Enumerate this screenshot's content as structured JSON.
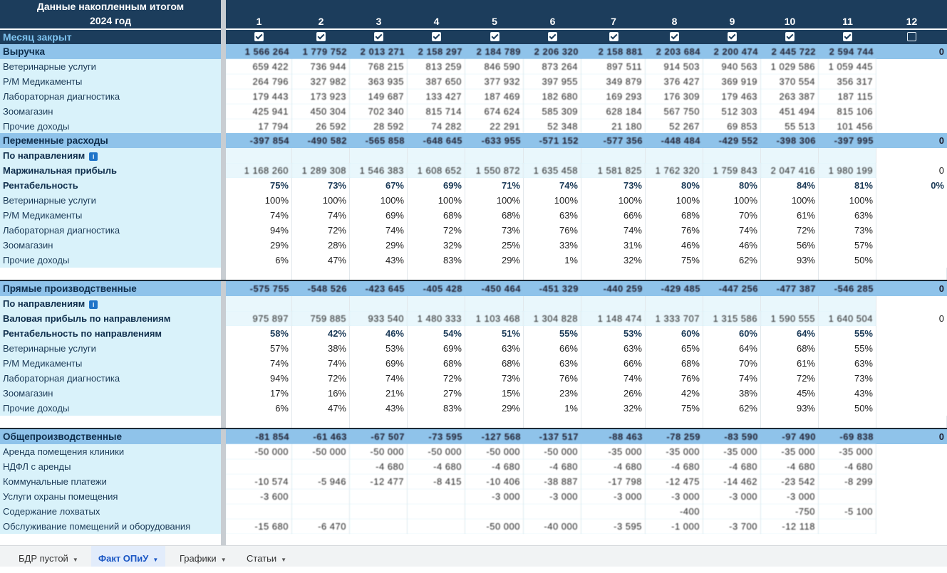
{
  "header": {
    "title": "Данные накопленным итогом",
    "year": "2024 год",
    "months": [
      "1",
      "2",
      "3",
      "4",
      "5",
      "6",
      "7",
      "8",
      "9",
      "10",
      "11",
      "12"
    ]
  },
  "month_closed": {
    "label": "Месяц закрыт",
    "checked": [
      true,
      true,
      true,
      true,
      true,
      true,
      true,
      true,
      true,
      true,
      true,
      false
    ]
  },
  "rows": [
    {
      "label": "Выручка",
      "type": "sec",
      "values": [
        "1 566 264",
        "1 779 752",
        "2 013 271",
        "2 158 297",
        "2 184 789",
        "2 206 320",
        "2 158 881",
        "2 203 684",
        "2 200 474",
        "2 445 722",
        "2 594 744",
        "0"
      ],
      "blur": true
    },
    {
      "label": "Ветеринарные услуги",
      "type": "sub",
      "values": [
        "659 422",
        "736 944",
        "768 215",
        "813 259",
        "846 590",
        "873 264",
        "897 511",
        "914 503",
        "940 563",
        "1 029 586",
        "1 059 445",
        ""
      ],
      "blur": true
    },
    {
      "label": "Р/М Медикаменты",
      "type": "sub",
      "values": [
        "264 796",
        "327 982",
        "363 935",
        "387 650",
        "377 932",
        "397 955",
        "349 879",
        "376 427",
        "369 919",
        "370 554",
        "356 317",
        ""
      ],
      "blur": true
    },
    {
      "label": "Лабораторная диагностика",
      "type": "sub",
      "values": [
        "179 443",
        "173 923",
        "149 687",
        "133 427",
        "187 469",
        "182 680",
        "169 293",
        "176 309",
        "179 463",
        "263 387",
        "187 115",
        ""
      ],
      "blur": true
    },
    {
      "label": "Зоомагазин",
      "type": "sub",
      "values": [
        "425 941",
        "450 304",
        "702 340",
        "815 714",
        "674 624",
        "585 309",
        "628 184",
        "567 750",
        "512 303",
        "451 494",
        "815 106",
        ""
      ],
      "blur": true
    },
    {
      "label": "Прочие доходы",
      "type": "sub",
      "values": [
        "17 794",
        "26 592",
        "28 592",
        "74 282",
        "22 291",
        "52 348",
        "21 180",
        "52 267",
        "69 853",
        "55 513",
        "101 456",
        ""
      ],
      "blur": true
    },
    {
      "label": "Переменные расходы",
      "type": "sec",
      "values": [
        "-397 854",
        "-490 582",
        "-565 858",
        "-648 645",
        "-633 955",
        "-571 152",
        "-577 356",
        "-448 484",
        "-429 552",
        "-398 306",
        "-397 995",
        "0"
      ],
      "blur": true
    },
    {
      "label": "По направлениям",
      "type": "sub subb",
      "info": true,
      "values": [
        "",
        "",
        "",
        "",
        "",
        "",
        "",
        "",
        "",
        "",
        "",
        ""
      ]
    },
    {
      "label": "Маржинальная прибыль",
      "type": "sub subb",
      "values": [
        "1 168 260",
        "1 289 308",
        "1 546 383",
        "1 608 652",
        "1 550 872",
        "1 635 458",
        "1 581 825",
        "1 762 320",
        "1 759 843",
        "2 047 416",
        "1 980 199",
        "0"
      ],
      "blur": true
    },
    {
      "label": "Рентабельность",
      "type": "sub subb pct",
      "values": [
        "75%",
        "73%",
        "67%",
        "69%",
        "71%",
        "74%",
        "73%",
        "80%",
        "80%",
        "84%",
        "81%",
        "0%"
      ]
    },
    {
      "label": "Ветеринарные услуги",
      "type": "sub",
      "values": [
        "100%",
        "100%",
        "100%",
        "100%",
        "100%",
        "100%",
        "100%",
        "100%",
        "100%",
        "100%",
        "100%",
        ""
      ]
    },
    {
      "label": "Р/М Медикаменты",
      "type": "sub",
      "values": [
        "74%",
        "74%",
        "69%",
        "68%",
        "68%",
        "63%",
        "66%",
        "68%",
        "70%",
        "61%",
        "63%",
        ""
      ]
    },
    {
      "label": "Лабораторная диагностика",
      "type": "sub",
      "values": [
        "94%",
        "72%",
        "74%",
        "72%",
        "73%",
        "76%",
        "74%",
        "76%",
        "74%",
        "72%",
        "73%",
        ""
      ]
    },
    {
      "label": "Зоомагазин",
      "type": "sub",
      "values": [
        "29%",
        "28%",
        "29%",
        "32%",
        "25%",
        "33%",
        "31%",
        "46%",
        "46%",
        "56%",
        "57%",
        ""
      ]
    },
    {
      "label": "Прочие доходы",
      "type": "sub",
      "values": [
        "6%",
        "47%",
        "43%",
        "83%",
        "29%",
        "1%",
        "32%",
        "75%",
        "62%",
        "93%",
        "50%",
        ""
      ]
    },
    {
      "label": "",
      "type": "blank",
      "values": [
        "",
        "",
        "",
        "",
        "",
        "",
        "",
        "",
        "",
        "",
        "",
        ""
      ]
    },
    {
      "label": "Прямые производственные",
      "type": "sec",
      "values": [
        "-575 755",
        "-548 526",
        "-423 645",
        "-405 428",
        "-450 464",
        "-451 329",
        "-440 259",
        "-429 485",
        "-447 256",
        "-477 387",
        "-546 285",
        "0"
      ],
      "blur": true
    },
    {
      "label": "По направлениям",
      "type": "sub subb",
      "info": true,
      "values": [
        "",
        "",
        "",
        "",
        "",
        "",
        "",
        "",
        "",
        "",
        "",
        ""
      ]
    },
    {
      "label": "Валовая прибыль по направлениям",
      "type": "sub subb",
      "values": [
        "975 897",
        "759 885",
        "933 540",
        "1 480 333",
        "1 103 468",
        "1 304 828",
        "1 148 474",
        "1 333 707",
        "1 315 586",
        "1 590 555",
        "1 640 504",
        "0"
      ],
      "blur": true
    },
    {
      "label": "Рентабельность по направлениям",
      "type": "sub subb pct",
      "values": [
        "58%",
        "42%",
        "46%",
        "54%",
        "51%",
        "55%",
        "53%",
        "60%",
        "60%",
        "64%",
        "55%",
        ""
      ]
    },
    {
      "label": "Ветеринарные услуги",
      "type": "sub",
      "values": [
        "57%",
        "38%",
        "53%",
        "69%",
        "63%",
        "66%",
        "63%",
        "65%",
        "64%",
        "68%",
        "55%",
        ""
      ]
    },
    {
      "label": "Р/М Медикаменты",
      "type": "sub",
      "values": [
        "74%",
        "74%",
        "69%",
        "68%",
        "68%",
        "63%",
        "66%",
        "68%",
        "70%",
        "61%",
        "63%",
        ""
      ]
    },
    {
      "label": "Лабораторная диагностика",
      "type": "sub",
      "values": [
        "94%",
        "72%",
        "74%",
        "72%",
        "73%",
        "76%",
        "74%",
        "76%",
        "74%",
        "72%",
        "73%",
        ""
      ]
    },
    {
      "label": "Зоомагазин",
      "type": "sub",
      "values": [
        "17%",
        "16%",
        "21%",
        "27%",
        "15%",
        "23%",
        "26%",
        "42%",
        "38%",
        "45%",
        "43%",
        ""
      ]
    },
    {
      "label": "Прочие доходы",
      "type": "sub",
      "values": [
        "6%",
        "47%",
        "43%",
        "83%",
        "29%",
        "1%",
        "32%",
        "75%",
        "62%",
        "93%",
        "50%",
        ""
      ]
    },
    {
      "label": "",
      "type": "blank",
      "values": [
        "",
        "",
        "",
        "",
        "",
        "",
        "",
        "",
        "",
        "",
        "",
        ""
      ]
    },
    {
      "label": "Общепроизводственные",
      "type": "sec",
      "values": [
        "-81 854",
        "-61 463",
        "-67 507",
        "-73 595",
        "-127 568",
        "-137 517",
        "-88 463",
        "-78 259",
        "-83 590",
        "-97 490",
        "-69 838",
        "0"
      ],
      "blur": true
    },
    {
      "label": "Аренда помещения клиники",
      "type": "sub",
      "values": [
        "-50 000",
        "-50 000",
        "-50 000",
        "-50 000",
        "-50 000",
        "-50 000",
        "-35 000",
        "-35 000",
        "-35 000",
        "-35 000",
        "-35 000",
        ""
      ],
      "blur": true
    },
    {
      "label": "НДФЛ с аренды",
      "type": "sub",
      "values": [
        "",
        "",
        "-4 680",
        "-4 680",
        "-4 680",
        "-4 680",
        "-4 680",
        "-4 680",
        "-4 680",
        "-4 680",
        "-4 680",
        ""
      ],
      "blur": true
    },
    {
      "label": "Коммунальные платежи",
      "type": "sub",
      "values": [
        "-10 574",
        "-5 946",
        "-12 477",
        "-8 415",
        "-10 406",
        "-38 887",
        "-17 798",
        "-12 475",
        "-14 462",
        "-23 542",
        "-8 299",
        ""
      ],
      "blur": true
    },
    {
      "label": "Услуги охраны помещения",
      "type": "sub",
      "values": [
        "-3 600",
        "",
        "",
        "",
        "-3 000",
        "-3 000",
        "-3 000",
        "-3 000",
        "-3 000",
        "-3 000",
        "",
        ""
      ],
      "blur": true
    },
    {
      "label": "Содержание лохватых",
      "type": "sub",
      "values": [
        "",
        "",
        "",
        "",
        "",
        "",
        "",
        "-400",
        "",
        "-750",
        "-5 100",
        ""
      ],
      "blur": true
    },
    {
      "label": "Обслуживание помещений и оборудования",
      "type": "sub",
      "values": [
        "-15 680",
        "-6 470",
        "",
        "",
        "-50 000",
        "-40 000",
        "-3 595",
        "-1 000",
        "-3 700",
        "-12 118",
        "",
        ""
      ],
      "blur": true
    }
  ],
  "tabs": [
    {
      "label": "БДР пустой",
      "active": false
    },
    {
      "label": "Факт ОПиУ",
      "active": true
    },
    {
      "label": "Графики",
      "active": false
    },
    {
      "label": "Статьи",
      "active": false
    }
  ]
}
